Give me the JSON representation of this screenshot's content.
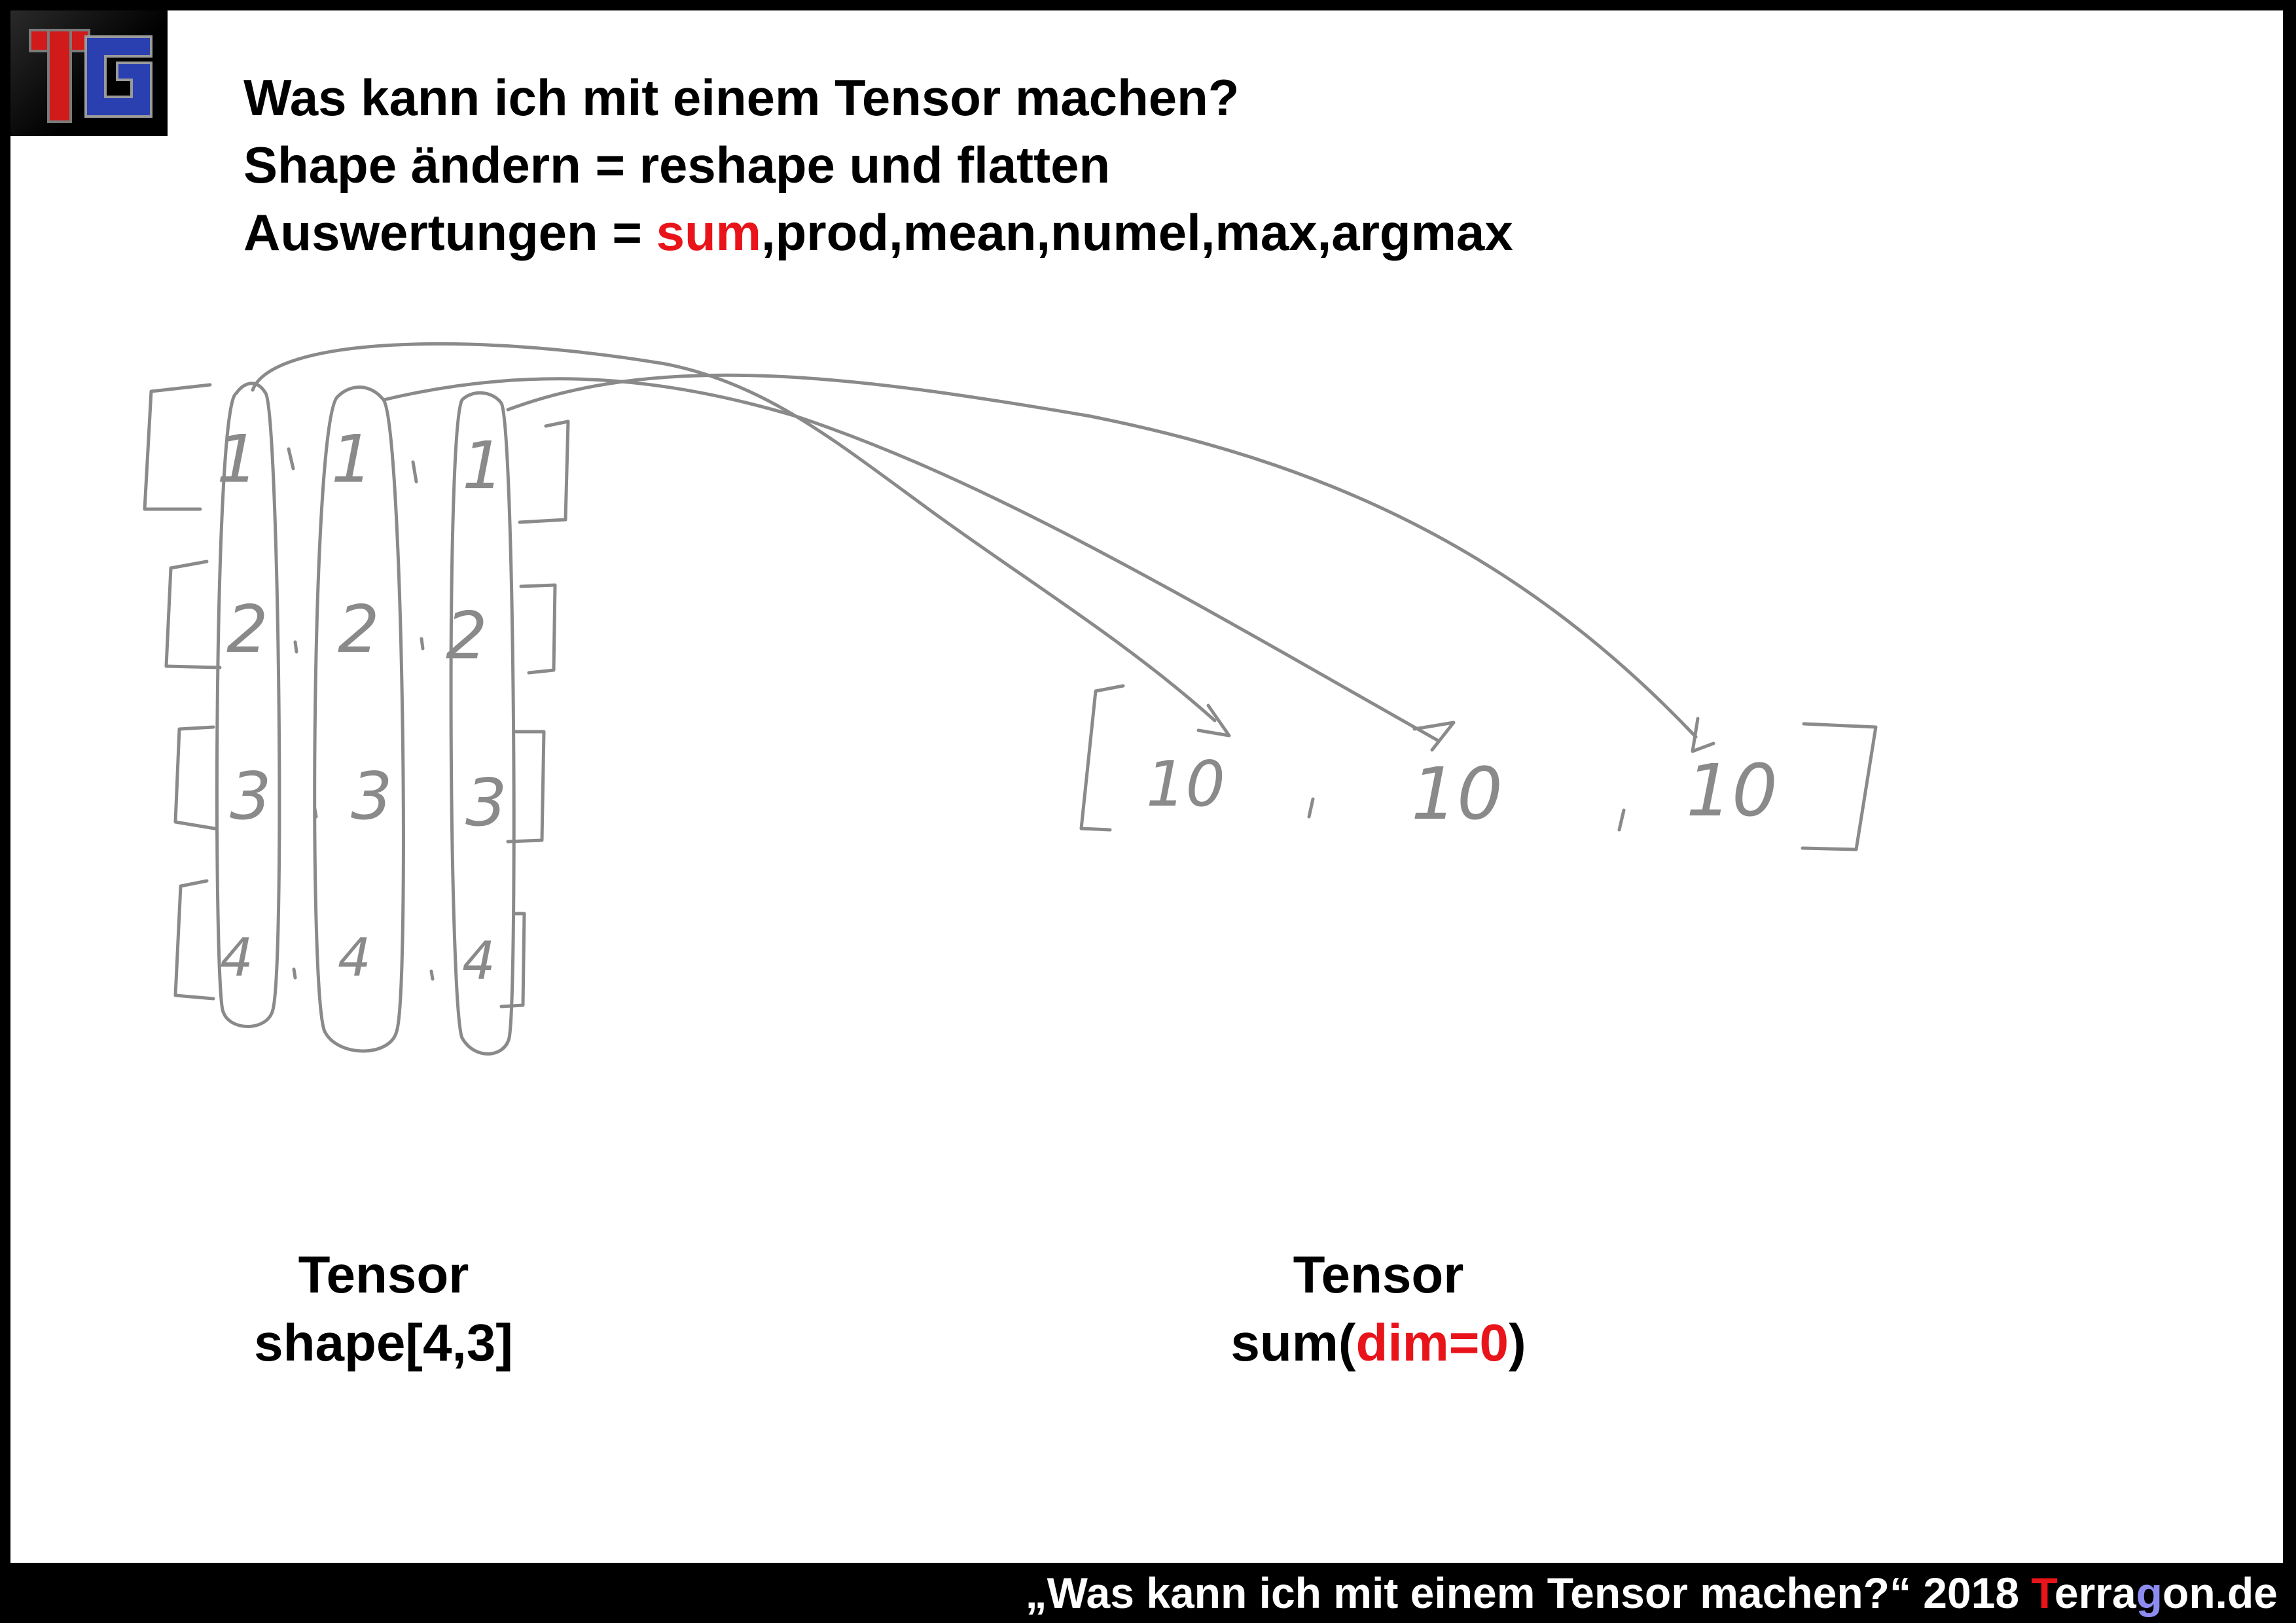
{
  "header": {
    "line1": "Was kann ich mit einem Tensor machen?",
    "line2": "Shape ändern = reshape und flatten",
    "line3_prefix": "Auswertungen = ",
    "line3_highlight": "sum",
    "line3_rest": ",prod,mean,numel,max,argmax"
  },
  "logo": {
    "icon": "tg-logo",
    "text": "TG"
  },
  "sketch": {
    "input_rows": [
      [
        "1",
        "1",
        "1"
      ],
      [
        "2",
        "2",
        "2"
      ],
      [
        "3",
        "3",
        "3"
      ],
      [
        "4",
        "4",
        "4"
      ]
    ],
    "result": [
      "10",
      "10",
      "10"
    ]
  },
  "captions": {
    "left_title": "Tensor",
    "left_sub": "shape[4,3]",
    "right_title": "Tensor",
    "right_sub_prefix": "sum(",
    "right_sub_highlight": "dim=0",
    "right_sub_suffix": ")"
  },
  "footer": {
    "quote": "„Was kann ich mit einem Tensor machen?“ 2018 ",
    "brand_1": "T",
    "brand_2": "erra",
    "brand_3": "g",
    "brand_4": "on.de"
  },
  "colors": {
    "highlight": "#e8141a",
    "pencil": "#8a8a8a",
    "footer_bg": "#000000",
    "logo_blue": "#2a3fb0"
  }
}
